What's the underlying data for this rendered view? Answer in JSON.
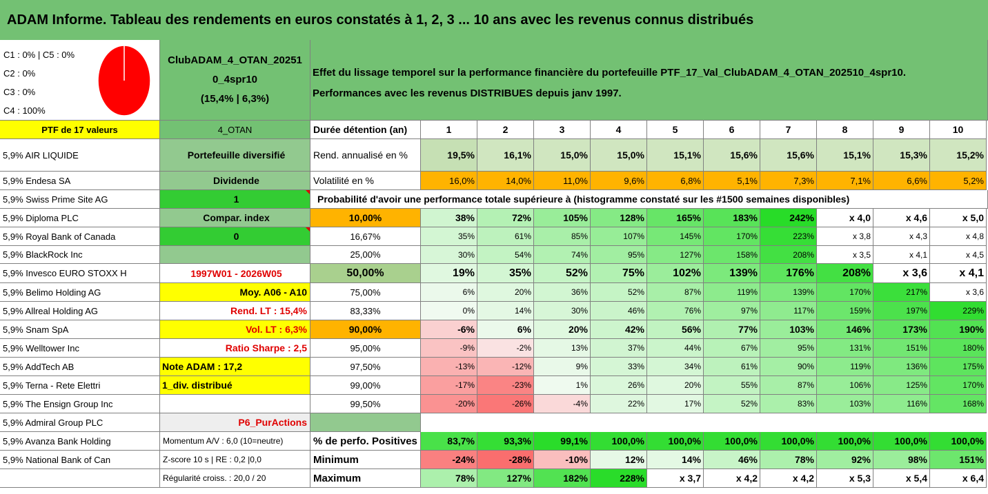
{
  "title": "ADAM Informe. Tableau des rendements en euros constatés à 1, 2, 3 ... 10 ans avec les revenus connus distribués",
  "legend": [
    "C1 : 0% | C5 : 0%",
    "C2 : 0%",
    "C3 : 0%",
    "C4 : 100%"
  ],
  "pie_color": "#ff0000",
  "fund": {
    "name_line1": "ClubADAM_4_OTAN_20251",
    "name_line2": "0_4spr10",
    "stats": "(15,4% | 6,3%)"
  },
  "description": {
    "line1": "Effet du lissage temporel sur la performance financière du portefeuille PTF_17_Val_ClubADAM_4_OTAN_202510_4spr10.",
    "line2": "Performances avec les revenus DISTRIBUES depuis janv 1997."
  },
  "header": {
    "ptf": "PTF de 17 valeurs",
    "code": "4_OTAN",
    "duration_label": "Durée détention (an)",
    "years": [
      "1",
      "2",
      "3",
      "4",
      "5",
      "6",
      "7",
      "8",
      "9",
      "10"
    ]
  },
  "holdings": [
    "5,9% AIR LIQUIDE",
    "5,9% Endesa SA",
    "5,9% Swiss Prime Site AG",
    "5,9% Diploma PLC",
    "5,9% Royal Bank of Canada",
    "5,9% BlackRock Inc",
    "5,9% Invesco EURO STOXX H",
    "5,9% Belimo Holding AG",
    "5,9% Allreal Holding AG",
    "5,9% Snam SpA",
    "5,9% Welltower Inc",
    "5,9% AddTech AB",
    "5,9% Terna - Rete Elettri",
    "5,9% The Ensign Group Inc",
    "5,9% Admiral Group PLC",
    "5,9% Avanza Bank Holding",
    "5,9% National Bank of Can",
    ""
  ],
  "info": [
    "Portefeuille diversifié",
    "Dividende",
    "1",
    "Compar. index",
    "0",
    "",
    "1997W01 - 2026W05",
    "Moy. A06 - A10",
    "Rend. LT : 15,4%",
    "Vol. LT : 6,3%",
    "Ratio Sharpe : 2,5",
    "Note ADAM : 17,2",
    "1_div. distribué",
    "",
    "P6_PurActions",
    "Momentum A/V : 6,0 (10=neutre)",
    "Z-score 10 s | RE : 0,2 |0,0",
    "Régularité croiss. : 20,0 / 20"
  ],
  "return_row": {
    "label": "Rend. annualisé en %",
    "values": [
      "19,5%",
      "16,1%",
      "15,0%",
      "15,0%",
      "15,1%",
      "15,6%",
      "15,6%",
      "15,1%",
      "15,3%",
      "15,2%"
    ]
  },
  "vol_row": {
    "label": "Volatilité en %",
    "values": [
      "16,0%",
      "14,0%",
      "11,0%",
      "9,6%",
      "6,8%",
      "5,1%",
      "7,3%",
      "7,1%",
      "6,6%",
      "5,2%"
    ]
  },
  "prob_title": "Probabilité d'avoir une performance totale supérieure à (histogramme constaté sur les #1500 semaines disponibles)",
  "prob_rows": [
    {
      "label": "10,00%",
      "values": [
        "38%",
        "72%",
        "105%",
        "128%",
        "165%",
        "183%",
        "242%",
        "x 4,0",
        "x 4,6",
        "x 5,0"
      ]
    },
    {
      "label": "16,67%",
      "values": [
        "35%",
        "61%",
        "85%",
        "107%",
        "145%",
        "170%",
        "223%",
        "x 3,8",
        "x 4,3",
        "x 4,8"
      ]
    },
    {
      "label": "25,00%",
      "values": [
        "30%",
        "54%",
        "74%",
        "95%",
        "127%",
        "158%",
        "208%",
        "x 3,5",
        "x 4,1",
        "x 4,5"
      ]
    },
    {
      "label": "50,00%",
      "values": [
        "19%",
        "35%",
        "52%",
        "75%",
        "102%",
        "139%",
        "176%",
        "208%",
        "x 3,6",
        "x 4,1"
      ]
    },
    {
      "label": "75,00%",
      "values": [
        "6%",
        "20%",
        "36%",
        "52%",
        "87%",
        "119%",
        "139%",
        "170%",
        "217%",
        "x 3,6"
      ]
    },
    {
      "label": "83,33%",
      "values": [
        "0%",
        "14%",
        "30%",
        "46%",
        "76%",
        "97%",
        "117%",
        "159%",
        "197%",
        "229%"
      ]
    },
    {
      "label": "90,00%",
      "values": [
        "-6%",
        "6%",
        "20%",
        "42%",
        "56%",
        "77%",
        "103%",
        "146%",
        "173%",
        "190%"
      ]
    },
    {
      "label": "95,00%",
      "values": [
        "-9%",
        "-2%",
        "13%",
        "37%",
        "44%",
        "67%",
        "95%",
        "131%",
        "151%",
        "180%"
      ]
    },
    {
      "label": "97,50%",
      "values": [
        "-13%",
        "-12%",
        "9%",
        "33%",
        "34%",
        "61%",
        "90%",
        "119%",
        "136%",
        "175%"
      ]
    },
    {
      "label": "99,00%",
      "values": [
        "-17%",
        "-23%",
        "1%",
        "26%",
        "20%",
        "55%",
        "87%",
        "106%",
        "125%",
        "170%"
      ]
    },
    {
      "label": "99,50%",
      "values": [
        "-20%",
        "-26%",
        "-4%",
        "22%",
        "17%",
        "52%",
        "83%",
        "103%",
        "116%",
        "168%"
      ]
    }
  ],
  "summary_rows": [
    {
      "label": "% de perfo. Positives",
      "values": [
        "83,7%",
        "93,3%",
        "99,1%",
        "100,0%",
        "100,0%",
        "100,0%",
        "100,0%",
        "100,0%",
        "100,0%",
        "100,0%"
      ]
    },
    {
      "label": "Minimum",
      "values": [
        "-24%",
        "-28%",
        "-10%",
        "12%",
        "14%",
        "46%",
        "78%",
        "92%",
        "98%",
        "151%"
      ]
    },
    {
      "label": "Maximum",
      "values": [
        "78%",
        "127%",
        "182%",
        "228%",
        "x 3,7",
        "x 4,2",
        "x 4,2",
        "x 5,3",
        "x 5,4",
        "x 6,4"
      ]
    }
  ]
}
